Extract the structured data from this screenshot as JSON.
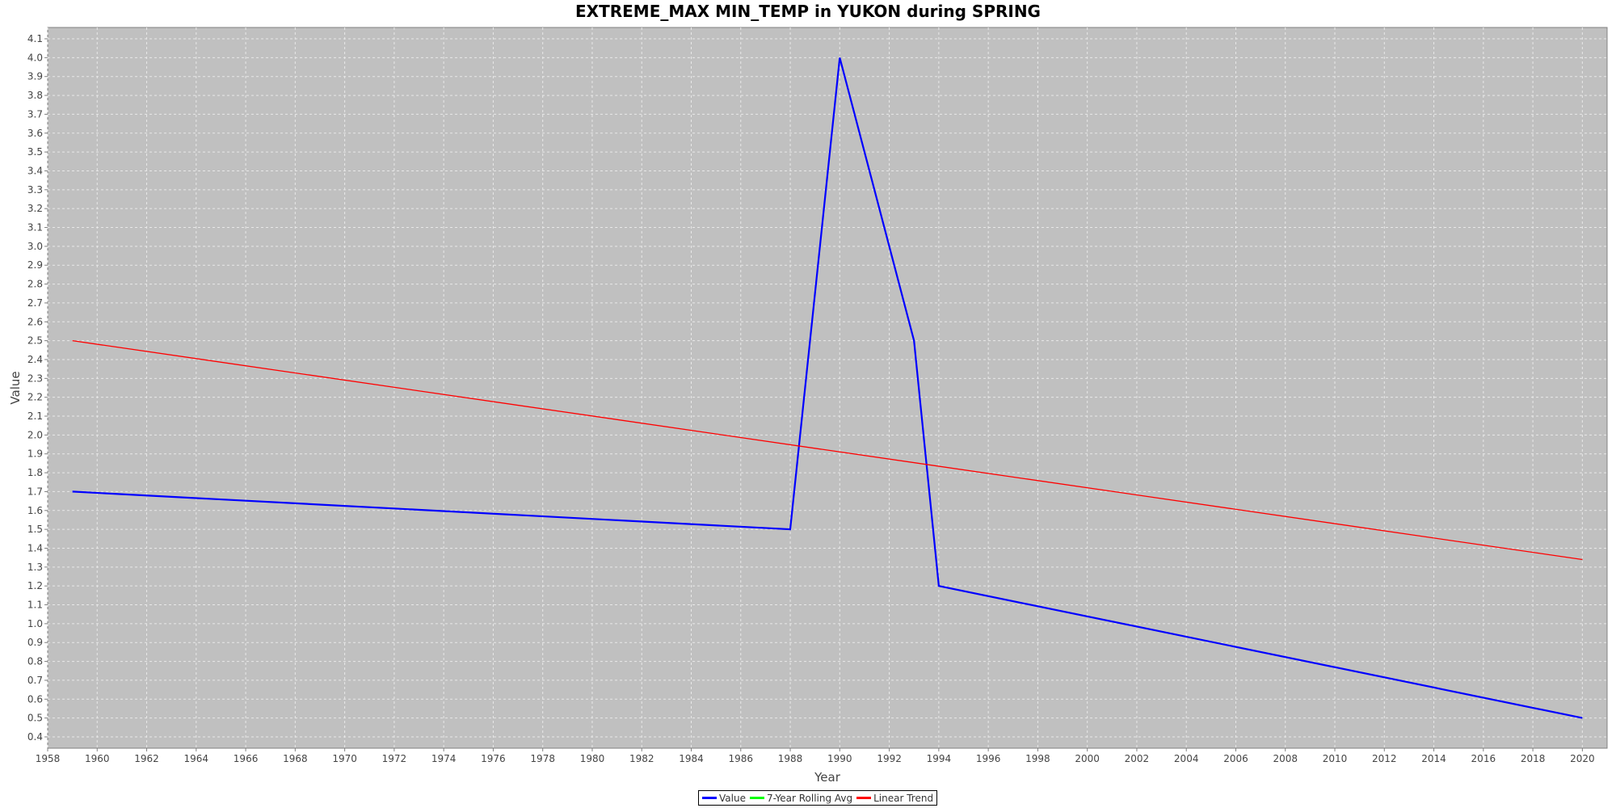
{
  "chart_data": {
    "type": "line",
    "title": "EXTREME_MAX MIN_TEMP in YUKON during SPRING",
    "xlabel": "Year",
    "ylabel": "Value",
    "xlim": [
      1958,
      2021
    ],
    "ylim": [
      0.34,
      4.16
    ],
    "x_ticks": [
      1958,
      1960,
      1962,
      1964,
      1966,
      1968,
      1970,
      1972,
      1974,
      1976,
      1978,
      1980,
      1982,
      1984,
      1986,
      1988,
      1990,
      1992,
      1994,
      1996,
      1998,
      2000,
      2002,
      2004,
      2006,
      2008,
      2010,
      2012,
      2014,
      2016,
      2018,
      2020
    ],
    "y_ticks": [
      "0.4",
      "0.5",
      "0.6",
      "0.7",
      "0.8",
      "0.9",
      "1.0",
      "1.1",
      "1.2",
      "1.3",
      "1.4",
      "1.5",
      "1.6",
      "1.7",
      "1.8",
      "1.9",
      "2.0",
      "2.1",
      "2.2",
      "2.3",
      "2.4",
      "2.5",
      "2.6",
      "2.7",
      "2.8",
      "2.9",
      "3.0",
      "3.1",
      "3.2",
      "3.3",
      "3.4",
      "3.5",
      "3.6",
      "3.7",
      "3.8",
      "3.9",
      "4.0",
      "4.1"
    ],
    "grid": true,
    "legend_position": "bottom-center",
    "plot_background": "#c0c0c0",
    "series": [
      {
        "name": "Value",
        "color": "#0000ff",
        "points": [
          [
            1959,
            1.7
          ],
          [
            1988,
            1.5
          ],
          [
            1990,
            4.0
          ],
          [
            1993,
            2.5
          ],
          [
            1994,
            1.2
          ],
          [
            2020,
            0.5
          ]
        ]
      },
      {
        "name": "7-Year Rolling Avg",
        "color": "#00ff00",
        "points": []
      },
      {
        "name": "Linear Trend",
        "color": "#ff0000",
        "points": [
          [
            1959,
            2.5
          ],
          [
            2020,
            1.34
          ]
        ]
      }
    ]
  }
}
